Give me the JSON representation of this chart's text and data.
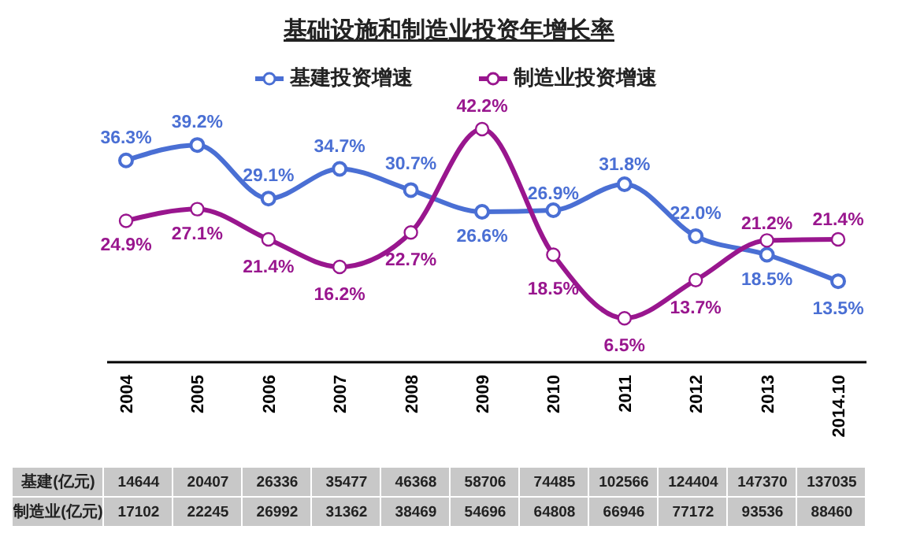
{
  "chart_data": {
    "type": "line",
    "title": "基础设施和制造业投资年增长率",
    "categories": [
      "2004",
      "2005",
      "2006",
      "2007",
      "2008",
      "2009",
      "2010",
      "2011",
      "2012",
      "2013",
      "2014.10"
    ],
    "series": [
      {
        "name": "基建投资增速",
        "color": "#4a6fd4",
        "values": [
          36.3,
          39.2,
          29.1,
          34.7,
          30.7,
          26.6,
          26.9,
          31.8,
          22.0,
          18.5,
          13.5
        ],
        "value_labels": [
          "36.3%",
          "39.2%",
          "29.1%",
          "34.7%",
          "30.7%",
          "26.6%",
          "26.9%",
          "31.8%",
          "22.0%",
          "18.5%",
          "13.5%"
        ]
      },
      {
        "name": "制造业投资增速",
        "color": "#99168e",
        "values": [
          24.9,
          27.1,
          21.4,
          16.2,
          22.7,
          42.2,
          18.5,
          6.5,
          13.7,
          21.2,
          21.4
        ],
        "value_labels": [
          "24.9%",
          "27.1%",
          "21.4%",
          "16.2%",
          "22.7%",
          "42.2%",
          "18.5%",
          "6.5%",
          "13.7%",
          "21.2%",
          "21.4%"
        ]
      }
    ],
    "data_labels": true,
    "legend": "top",
    "marker": "circle",
    "line_style": "solid",
    "tick_labels": "x",
    "annotations": [
      "基建(亿元)",
      "14644",
      "20407",
      "26336",
      "35477",
      "46368",
      "58706",
      "74485",
      "102566",
      "124404",
      "147370",
      "137035",
      "制造业(亿元)",
      "17102",
      "22245",
      "26992",
      "31362",
      "38469",
      "54696",
      "64808",
      "66946",
      "77172",
      "93536",
      "88460"
    ]
  }
}
